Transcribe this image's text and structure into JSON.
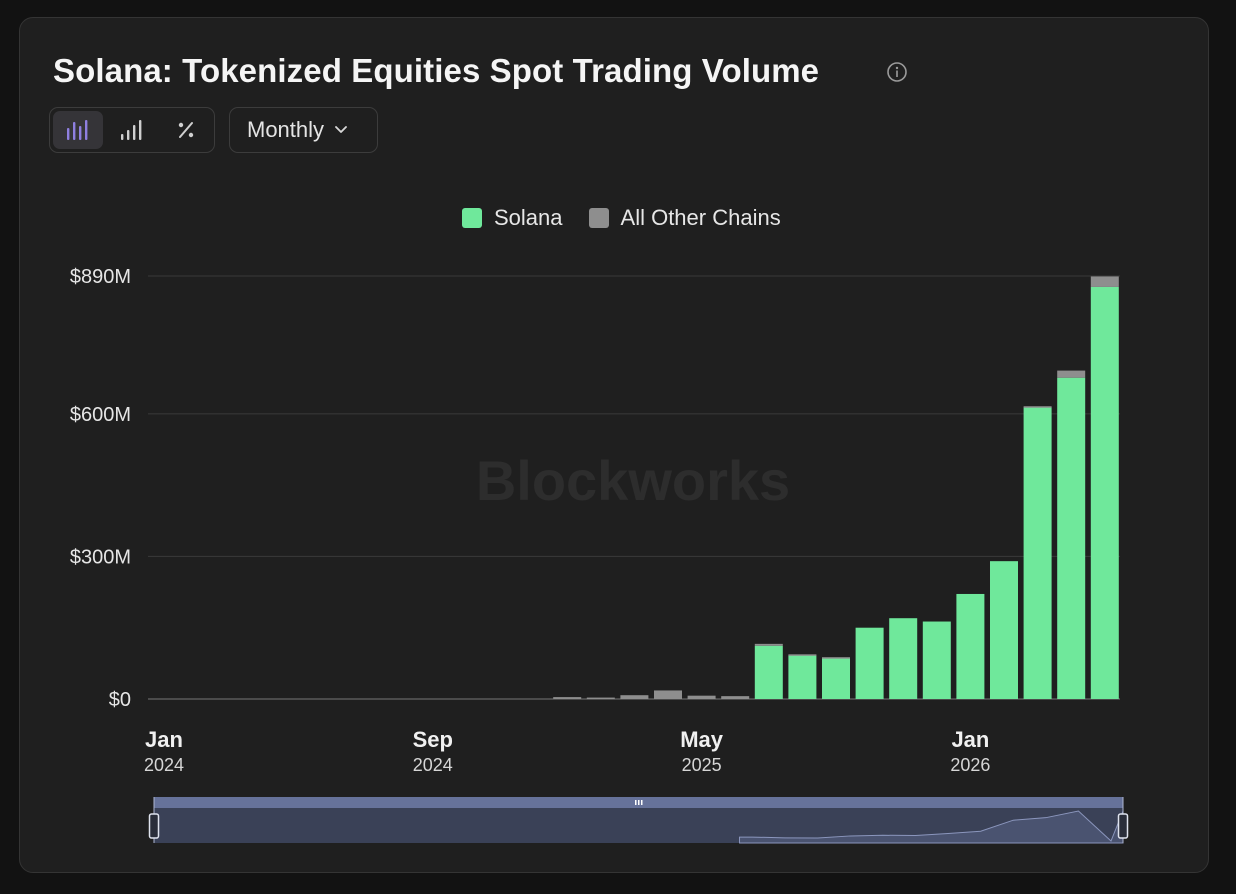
{
  "card": {
    "title": "Solana: Tokenized Equities Spot Trading Volume",
    "info_icon": "info-circle-icon"
  },
  "toolbar": {
    "chart_buttons": [
      {
        "icon": "bar-chart-stacked-icon",
        "active": true
      },
      {
        "icon": "bar-chart-ascending-icon",
        "active": false
      },
      {
        "icon": "percent-icon",
        "active": false
      }
    ],
    "interval": {
      "label": "Monthly",
      "icon": "chevron-down-icon"
    }
  },
  "colors": {
    "solana": "#6fe89b",
    "other": "#8e8e8e",
    "accent": "#8f7fe0"
  },
  "watermark": "Blockworks",
  "chart_data": {
    "type": "bar",
    "stacked": true,
    "legend": {
      "placement": "top-center"
    },
    "grid": true,
    "ylim": [
      0,
      890
    ],
    "y_ticks": [
      {
        "value": 0,
        "label": "$0"
      },
      {
        "value": 300,
        "label": "$300M"
      },
      {
        "value": 600,
        "label": "$600M"
      },
      {
        "value": 890,
        "label": "$890M"
      }
    ],
    "x_ticks": [
      {
        "month": "2024-01",
        "label": "Jan",
        "year": "2024"
      },
      {
        "month": "2024-09",
        "label": "Sep",
        "year": "2024"
      },
      {
        "month": "2025-05",
        "label": "May",
        "year": "2025"
      },
      {
        "month": "2026-01",
        "label": "Jan",
        "year": "2026"
      }
    ],
    "categories": [
      "2024-01",
      "2024-02",
      "2024-03",
      "2024-04",
      "2024-05",
      "2024-06",
      "2024-07",
      "2024-08",
      "2024-09",
      "2024-10",
      "2024-11",
      "2024-12",
      "2025-01",
      "2025-02",
      "2025-03",
      "2025-04",
      "2025-05",
      "2025-06",
      "2025-07",
      "2025-08",
      "2025-09",
      "2025-10",
      "2025-11",
      "2025-12",
      "2026-01",
      "2026-02",
      "2026-03",
      "2026-04",
      "2026-05",
      "2026-06"
    ],
    "series": [
      {
        "name": "Solana",
        "values": [
          0,
          0,
          0,
          0,
          0,
          0,
          0,
          0,
          0,
          0,
          0,
          0,
          0,
          0,
          0,
          0,
          0,
          0,
          112,
          92,
          86,
          150,
          170,
          163,
          221,
          290,
          614,
          676,
          867,
          0
        ]
      },
      {
        "name": "All Other Chains",
        "values": [
          0,
          0,
          0,
          0,
          0,
          0,
          0,
          0,
          0,
          0,
          0,
          0,
          4,
          3,
          8,
          18,
          7,
          6,
          4,
          2,
          2,
          0,
          0,
          0,
          0,
          0,
          2,
          15,
          22,
          0
        ]
      }
    ]
  },
  "navigator": {
    "grip_icon": "grip-icon",
    "left_handle": "left-handle",
    "right_handle": "right-handle"
  }
}
